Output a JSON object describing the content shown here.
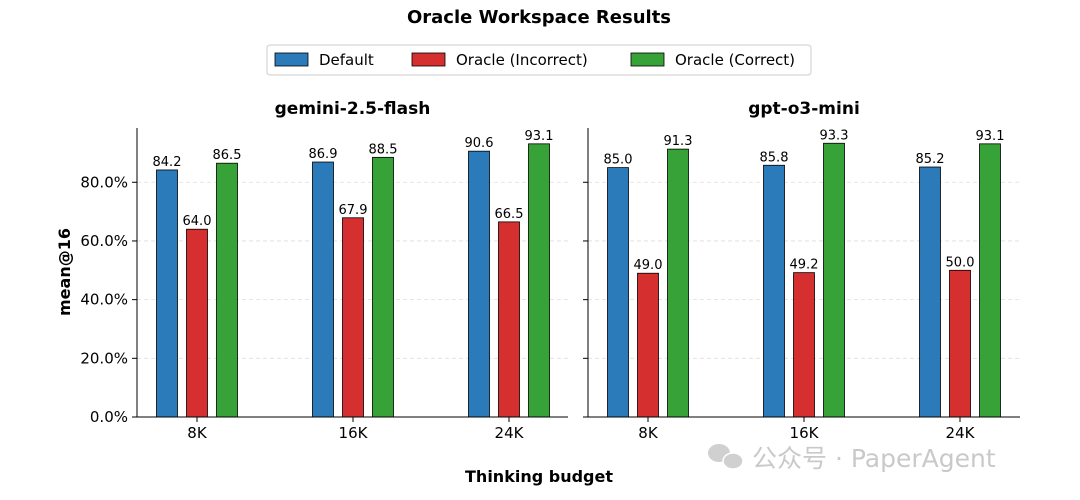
{
  "chart_data": [
    {
      "type": "bar",
      "title": "gemini-2.5-flash",
      "categories": [
        "8K",
        "16K",
        "24K"
      ],
      "series": [
        {
          "name": "Default",
          "values": [
            84.2,
            86.9,
            90.6
          ]
        },
        {
          "name": "Oracle (Incorrect)",
          "values": [
            64.0,
            67.9,
            66.5
          ]
        },
        {
          "name": "Oracle (Correct)",
          "values": [
            86.5,
            88.5,
            93.1
          ]
        }
      ],
      "ylabel": "mean@16",
      "ylim": [
        0,
        98.5
      ],
      "yticks": [
        "0.0%",
        "20.0%",
        "40.0%",
        "60.0%",
        "80.0%"
      ],
      "grid": true
    },
    {
      "type": "bar",
      "title": "gpt-o3-mini",
      "categories": [
        "8K",
        "16K",
        "24K"
      ],
      "series": [
        {
          "name": "Default",
          "values": [
            85.0,
            85.8,
            85.2
          ]
        },
        {
          "name": "Oracle (Incorrect)",
          "values": [
            49.0,
            49.2,
            50.0
          ]
        },
        {
          "name": "Oracle (Correct)",
          "values": [
            91.3,
            93.3,
            93.1
          ]
        }
      ],
      "ylim": [
        0,
        98.5
      ],
      "grid": true
    }
  ],
  "suptitle": "Oracle Workspace Results",
  "xlabel": "Thinking budget",
  "legend": {
    "placement": "top-center",
    "entries": [
      "Default",
      "Oracle (Incorrect)",
      "Oracle (Correct)"
    ]
  },
  "colors": [
    "#2b7bba",
    "#d62f2f",
    "#37a237"
  ],
  "watermark": {
    "icon": "wechat-icon",
    "text": "公众号 · PaperAgent"
  }
}
